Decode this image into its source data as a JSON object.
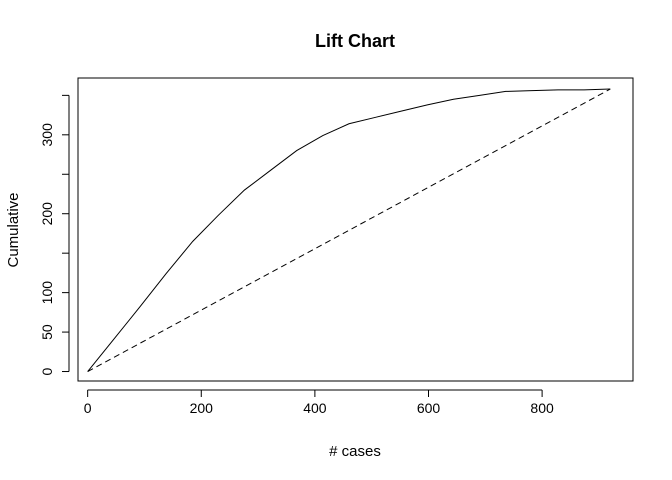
{
  "chart_data": {
    "type": "line",
    "title": "Lift Chart",
    "xlabel": "# cases",
    "ylabel": "Cumulative",
    "xlim": [
      -17,
      960
    ],
    "ylim": [
      -12,
      372
    ],
    "xticks": [
      0,
      200,
      400,
      600,
      800
    ],
    "yticks": [
      0,
      50,
      100,
      200,
      300
    ],
    "yticks_unlabeled": [
      150,
      250,
      350
    ],
    "grid": false,
    "legend": "none",
    "series": [
      {
        "style": "solid",
        "x": [
          0,
          45,
          92,
          138,
          185,
          230,
          276,
          322,
          368,
          414,
          460,
          506,
          552,
          598,
          644,
          690,
          736,
          782,
          828,
          874,
          920
        ],
        "y": [
          0,
          40,
          82,
          124,
          165,
          198,
          230,
          255,
          280,
          299,
          314,
          322,
          330,
          338,
          345,
          350,
          355,
          356,
          357,
          357,
          358
        ]
      },
      {
        "style": "dashed",
        "x": [
          0,
          920
        ],
        "y": [
          0,
          358
        ]
      }
    ]
  }
}
